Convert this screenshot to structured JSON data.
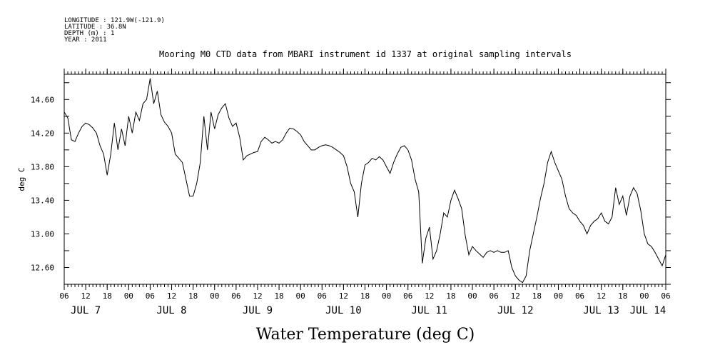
{
  "header": {
    "meta_lines": [
      "LONGITUDE : 121.9W(-121.9)",
      "LATITUDE : 36.8N",
      "DEPTH (m) : 1",
      "YEAR : 2011"
    ],
    "title": "Mooring M0 CTD data from MBARI instrument id 1337 at original sampling intervals"
  },
  "chart_data": {
    "type": "line",
    "title": "Mooring M0 CTD data from MBARI instrument id 1337 at original sampling intervals",
    "xlabel": "Water Temperature (deg C)",
    "ylabel": "deg C",
    "xlim": [
      "JUL 7 06:00",
      "JUL 14 06:00"
    ],
    "ylim": [
      12.4,
      14.9
    ],
    "y_ticks": [
      "12.60",
      "13.00",
      "13.40",
      "13.80",
      "14.20",
      "14.60"
    ],
    "x_hour_labels": [
      "06",
      "12",
      "18",
      "00",
      "06",
      "12",
      "18",
      "00",
      "06",
      "12",
      "18",
      "00",
      "06",
      "12",
      "18",
      "00",
      "06",
      "12",
      "18",
      "00",
      "06",
      "12",
      "18",
      "00",
      "06",
      "12",
      "18",
      "00",
      "06"
    ],
    "x_day_labels": [
      "JUL 7",
      "JUL 8",
      "JUL 9",
      "JUL 10",
      "JUL 11",
      "JUL 12",
      "JUL 13",
      "JUL 14"
    ],
    "grid": false,
    "series": [
      {
        "color": "#000000",
        "points": [
          [
            "JUL 7 06:00",
            14.45
          ],
          [
            "JUL 7 07:00",
            14.38
          ],
          [
            "JUL 7 08:00",
            14.12
          ],
          [
            "JUL 7 09:00",
            14.1
          ],
          [
            "JUL 7 10:00",
            14.2
          ],
          [
            "JUL 7 11:00",
            14.28
          ],
          [
            "JUL 7 12:00",
            14.32
          ],
          [
            "JUL 7 13:00",
            14.3
          ],
          [
            "JUL 7 14:00",
            14.26
          ],
          [
            "JUL 7 15:00",
            14.2
          ],
          [
            "JUL 7 16:00",
            14.05
          ],
          [
            "JUL 7 17:00",
            13.95
          ],
          [
            "JUL 7 18:00",
            13.7
          ],
          [
            "JUL 7 19:00",
            13.95
          ],
          [
            "JUL 7 20:00",
            14.32
          ],
          [
            "JUL 7 21:00",
            14.0
          ],
          [
            "JUL 7 22:00",
            14.25
          ],
          [
            "JUL 7 23:00",
            14.05
          ],
          [
            "JUL 8 00:00",
            14.4
          ],
          [
            "JUL 8 01:00",
            14.2
          ],
          [
            "JUL 8 02:00",
            14.45
          ],
          [
            "JUL 8 03:00",
            14.35
          ],
          [
            "JUL 8 04:00",
            14.55
          ],
          [
            "JUL 8 05:00",
            14.6
          ],
          [
            "JUL 8 06:00",
            14.85
          ],
          [
            "JUL 8 07:00",
            14.55
          ],
          [
            "JUL 8 08:00",
            14.7
          ],
          [
            "JUL 8 09:00",
            14.42
          ],
          [
            "JUL 8 10:00",
            14.33
          ],
          [
            "JUL 8 11:00",
            14.28
          ],
          [
            "JUL 8 12:00",
            14.2
          ],
          [
            "JUL 8 13:00",
            13.95
          ],
          [
            "JUL 8 14:00",
            13.9
          ],
          [
            "JUL 8 15:00",
            13.85
          ],
          [
            "JUL 8 16:00",
            13.65
          ],
          [
            "JUL 8 17:00",
            13.45
          ],
          [
            "JUL 8 18:00",
            13.45
          ],
          [
            "JUL 8 19:00",
            13.6
          ],
          [
            "JUL 8 20:00",
            13.85
          ],
          [
            "JUL 8 21:00",
            14.4
          ],
          [
            "JUL 8 22:00",
            14.0
          ],
          [
            "JUL 8 23:00",
            14.45
          ],
          [
            "JUL 9 00:00",
            14.25
          ],
          [
            "JUL 9 01:00",
            14.42
          ],
          [
            "JUL 9 02:00",
            14.5
          ],
          [
            "JUL 9 03:00",
            14.55
          ],
          [
            "JUL 9 04:00",
            14.38
          ],
          [
            "JUL 9 05:00",
            14.28
          ],
          [
            "JUL 9 06:00",
            14.32
          ],
          [
            "JUL 9 07:00",
            14.15
          ],
          [
            "JUL 9 08:00",
            13.88
          ],
          [
            "JUL 9 09:00",
            13.93
          ],
          [
            "JUL 9 10:00",
            13.95
          ],
          [
            "JUL 9 11:00",
            13.97
          ],
          [
            "JUL 9 12:00",
            13.98
          ],
          [
            "JUL 9 13:00",
            14.1
          ],
          [
            "JUL 9 14:00",
            14.15
          ],
          [
            "JUL 9 15:00",
            14.12
          ],
          [
            "JUL 9 16:00",
            14.08
          ],
          [
            "JUL 9 17:00",
            14.1
          ],
          [
            "JUL 9 18:00",
            14.08
          ],
          [
            "JUL 9 19:00",
            14.12
          ],
          [
            "JUL 9 20:00",
            14.2
          ],
          [
            "JUL 9 21:00",
            14.26
          ],
          [
            "JUL 9 22:00",
            14.25
          ],
          [
            "JUL 9 23:00",
            14.22
          ],
          [
            "JUL 10 00:00",
            14.18
          ],
          [
            "JUL 10 01:00",
            14.1
          ],
          [
            "JUL 10 02:00",
            14.05
          ],
          [
            "JUL 10 03:00",
            14.0
          ],
          [
            "JUL 10 04:00",
            14.0
          ],
          [
            "JUL 10 05:00",
            14.03
          ],
          [
            "JUL 10 06:00",
            14.05
          ],
          [
            "JUL 10 07:00",
            14.06
          ],
          [
            "JUL 10 08:00",
            14.05
          ],
          [
            "JUL 10 09:00",
            14.03
          ],
          [
            "JUL 10 10:00",
            14.0
          ],
          [
            "JUL 10 11:00",
            13.97
          ],
          [
            "JUL 10 12:00",
            13.93
          ],
          [
            "JUL 10 13:00",
            13.8
          ],
          [
            "JUL 10 14:00",
            13.6
          ],
          [
            "JUL 10 15:00",
            13.5
          ],
          [
            "JUL 10 16:00",
            13.2
          ],
          [
            "JUL 10 17:00",
            13.6
          ],
          [
            "JUL 10 18:00",
            13.82
          ],
          [
            "JUL 10 19:00",
            13.85
          ],
          [
            "JUL 10 20:00",
            13.9
          ],
          [
            "JUL 10 21:00",
            13.88
          ],
          [
            "JUL 10 22:00",
            13.92
          ],
          [
            "JUL 10 23:00",
            13.88
          ],
          [
            "JUL 11 00:00",
            13.8
          ],
          [
            "JUL 11 01:00",
            13.72
          ],
          [
            "JUL 11 02:00",
            13.85
          ],
          [
            "JUL 11 03:00",
            13.95
          ],
          [
            "JUL 11 04:00",
            14.03
          ],
          [
            "JUL 11 05:00",
            14.05
          ],
          [
            "JUL 11 06:00",
            14.0
          ],
          [
            "JUL 11 07:00",
            13.88
          ],
          [
            "JUL 11 08:00",
            13.65
          ],
          [
            "JUL 11 09:00",
            13.5
          ],
          [
            "JUL 11 10:00",
            12.65
          ],
          [
            "JUL 11 11:00",
            12.95
          ],
          [
            "JUL 11 12:00",
            13.08
          ],
          [
            "JUL 11 13:00",
            12.7
          ],
          [
            "JUL 11 14:00",
            12.8
          ],
          [
            "JUL 11 15:00",
            13.0
          ],
          [
            "JUL 11 16:00",
            13.25
          ],
          [
            "JUL 11 17:00",
            13.2
          ],
          [
            "JUL 11 18:00",
            13.4
          ],
          [
            "JUL 11 19:00",
            13.52
          ],
          [
            "JUL 11 20:00",
            13.42
          ],
          [
            "JUL 11 21:00",
            13.3
          ],
          [
            "JUL 11 22:00",
            12.98
          ],
          [
            "JUL 11 23:00",
            12.75
          ],
          [
            "JUL 12 00:00",
            12.85
          ],
          [
            "JUL 12 01:00",
            12.8
          ],
          [
            "JUL 12 02:00",
            12.76
          ],
          [
            "JUL 12 03:00",
            12.72
          ],
          [
            "JUL 12 04:00",
            12.78
          ],
          [
            "JUL 12 05:00",
            12.8
          ],
          [
            "JUL 12 06:00",
            12.78
          ],
          [
            "JUL 12 07:00",
            12.8
          ],
          [
            "JUL 12 08:00",
            12.78
          ],
          [
            "JUL 12 09:00",
            12.78
          ],
          [
            "JUL 12 10:00",
            12.8
          ],
          [
            "JUL 12 11:00",
            12.6
          ],
          [
            "JUL 12 12:00",
            12.5
          ],
          [
            "JUL 12 13:00",
            12.45
          ],
          [
            "JUL 12 14:00",
            12.42
          ],
          [
            "JUL 12 15:00",
            12.5
          ],
          [
            "JUL 12 16:00",
            12.8
          ],
          [
            "JUL 12 17:00",
            13.0
          ],
          [
            "JUL 12 18:00",
            13.2
          ],
          [
            "JUL 12 19:00",
            13.42
          ],
          [
            "JUL 12 20:00",
            13.6
          ],
          [
            "JUL 12 21:00",
            13.85
          ],
          [
            "JUL 12 22:00",
            13.98
          ],
          [
            "JUL 12 23:00",
            13.85
          ],
          [
            "JUL 13 00:00",
            13.75
          ],
          [
            "JUL 13 01:00",
            13.65
          ],
          [
            "JUL 13 02:00",
            13.45
          ],
          [
            "JUL 13 03:00",
            13.3
          ],
          [
            "JUL 13 04:00",
            13.25
          ],
          [
            "JUL 13 05:00",
            13.22
          ],
          [
            "JUL 13 06:00",
            13.15
          ],
          [
            "JUL 13 07:00",
            13.1
          ],
          [
            "JUL 13 08:00",
            13.0
          ],
          [
            "JUL 13 09:00",
            13.1
          ],
          [
            "JUL 13 10:00",
            13.15
          ],
          [
            "JUL 13 11:00",
            13.18
          ],
          [
            "JUL 13 12:00",
            13.25
          ],
          [
            "JUL 13 13:00",
            13.15
          ],
          [
            "JUL 13 14:00",
            13.12
          ],
          [
            "JUL 13 15:00",
            13.2
          ],
          [
            "JUL 13 16:00",
            13.55
          ],
          [
            "JUL 13 17:00",
            13.35
          ],
          [
            "JUL 13 18:00",
            13.45
          ],
          [
            "JUL 13 19:00",
            13.22
          ],
          [
            "JUL 13 20:00",
            13.45
          ],
          [
            "JUL 13 21:00",
            13.55
          ],
          [
            "JUL 13 22:00",
            13.48
          ],
          [
            "JUL 13 23:00",
            13.28
          ],
          [
            "JUL 14 00:00",
            13.0
          ],
          [
            "JUL 14 01:00",
            12.88
          ],
          [
            "JUL 14 02:00",
            12.85
          ],
          [
            "JUL 14 03:00",
            12.78
          ],
          [
            "JUL 14 04:00",
            12.7
          ],
          [
            "JUL 14 05:00",
            12.62
          ],
          [
            "JUL 14 06:00",
            12.75
          ]
        ]
      }
    ]
  }
}
